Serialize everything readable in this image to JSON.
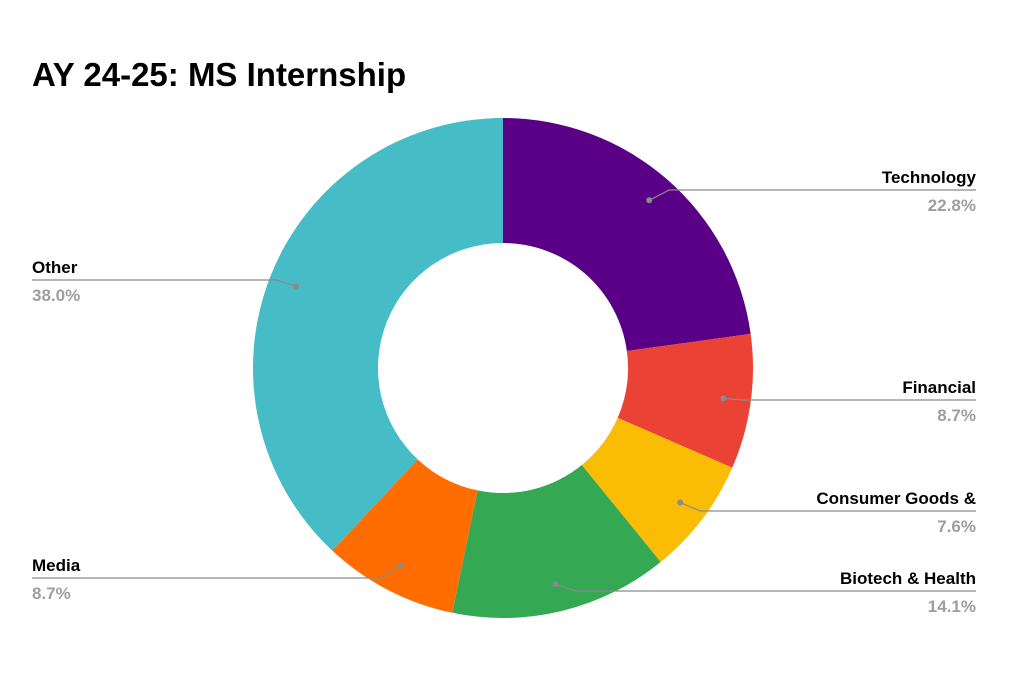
{
  "chart_data": {
    "type": "pie",
    "donut": true,
    "title": "AY 24-25: MS Internship",
    "slices": [
      {
        "label": "Technology",
        "value": 22.8,
        "display": "22.8%",
        "color": "#5a0087"
      },
      {
        "label": "Financial",
        "value": 8.7,
        "display": "8.7%",
        "color": "#ea4335"
      },
      {
        "label": "Consumer Goods &",
        "value": 7.6,
        "display": "7.6%",
        "color": "#fbbc04"
      },
      {
        "label": "Biotech & Health",
        "value": 14.1,
        "display": "14.1%",
        "color": "#34a853"
      },
      {
        "label": "Media",
        "value": 8.7,
        "display": "8.7%",
        "color": "#ff6d01"
      },
      {
        "label": "Other",
        "value": 38.0,
        "display": "38.0%",
        "color": "#46bdc6"
      }
    ]
  }
}
